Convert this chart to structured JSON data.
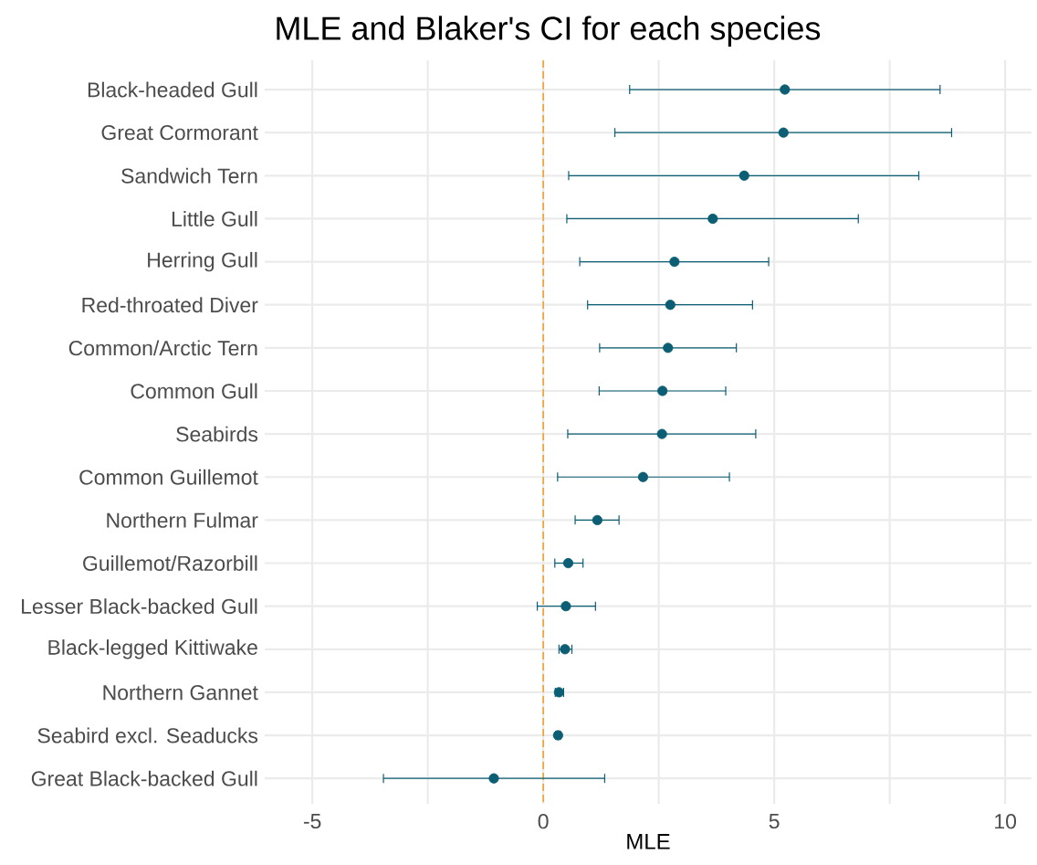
{
  "chart_data": {
    "type": "scatter",
    "title": "MLE and Blaker's CI for each species",
    "xlabel": "MLE",
    "orientation": "horizontal",
    "categories": [
      "Black-headed Gull",
      "Great Cormorant",
      "Sandwich Tern",
      "Little Gull",
      "Herring Gull",
      "Red-throated Diver",
      "Common/Arctic Tern",
      "Common Gull",
      "Seabirds",
      "Common Guillemot",
      "Northern Fulmar",
      "Guillemot/Razorbill",
      "Lesser Black-backed Gull",
      "Black-legged Kittiwake",
      "Northern Gannet",
      "Seabird excl. Seaducks",
      "Great Black-backed Gull"
    ],
    "values": [
      5.23,
      5.2,
      4.35,
      3.67,
      2.84,
      2.75,
      2.7,
      2.58,
      2.57,
      2.16,
      1.17,
      0.54,
      0.49,
      0.47,
      0.34,
      0.32,
      -1.07
    ],
    "errors": [
      [
        1.87,
        8.59
      ],
      [
        1.55,
        8.84
      ],
      [
        0.55,
        8.13
      ],
      [
        0.51,
        6.82
      ],
      [
        0.79,
        4.88
      ],
      [
        0.96,
        4.53
      ],
      [
        1.22,
        4.18
      ],
      [
        1.21,
        3.95
      ],
      [
        0.53,
        4.6
      ],
      [
        0.31,
        4.03
      ],
      [
        0.69,
        1.64
      ],
      [
        0.25,
        0.86
      ],
      [
        -0.13,
        1.13
      ],
      [
        0.34,
        0.62
      ],
      [
        0.26,
        0.44
      ],
      [
        0.27,
        0.37
      ],
      [
        -3.46,
        1.33
      ]
    ],
    "color": "#0b5e73",
    "xlim": [
      -6.03,
      10.57
    ],
    "xticks": [
      -5,
      {
        "value": -2.5,
        "label": null
      },
      0,
      {
        "value": 2.5,
        "label": null
      },
      5,
      {
        "value": 7.5,
        "label": null
      },
      10
    ],
    "grid": true,
    "ref_lines": [
      {
        "axis": "x",
        "value": 0,
        "color": "#f0a030",
        "line_style": "dashed"
      }
    ]
  }
}
